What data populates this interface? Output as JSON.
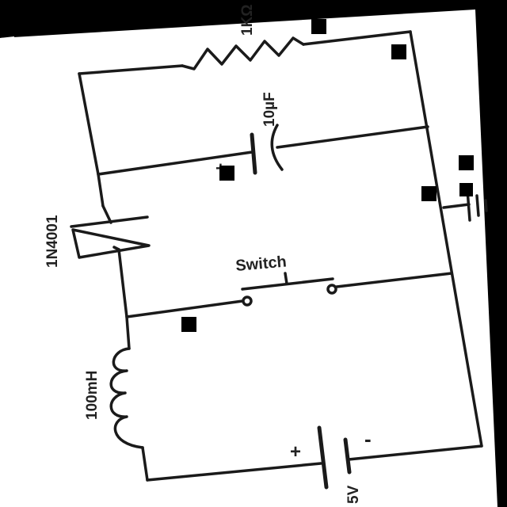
{
  "labels": {
    "resistor": "1KΩ",
    "capacitor": "10µF",
    "diode": "1N4001",
    "switch": "Switch",
    "inductor": "100mH",
    "battery": "5V"
  },
  "polarity": {
    "capacitor_plus": "+",
    "battery_plus": "+",
    "battery_minus": "-"
  },
  "colors": {
    "background": "#000000",
    "paper": "#ffffff",
    "ink": "#1a1a1a"
  }
}
